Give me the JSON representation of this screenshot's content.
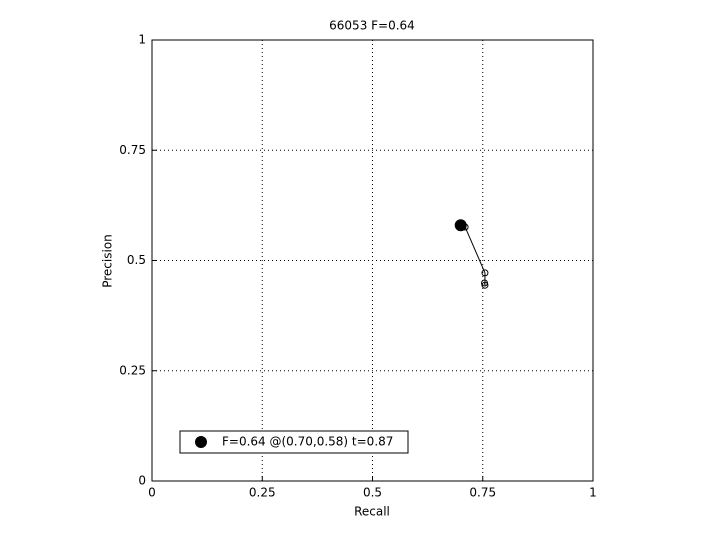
{
  "chart_data": {
    "type": "line",
    "title": "66053 F=0.64",
    "x_label": "Recall",
    "y_label": "Precision",
    "series": [
      {
        "color": "#000000",
        "x": [
          0.71,
          0.755,
          0.755,
          0.754
        ],
        "values": [
          0.576,
          0.472,
          0.444,
          0.449
        ]
      }
    ],
    "best_point": {
      "x": 0.7,
      "y": 0.58,
      "color": "#000000",
      "legend": "F=0.64 @(0.70,0.58) t=0.87"
    },
    "xlim": [
      0,
      1
    ],
    "ylim": [
      0,
      1
    ],
    "xticks": [
      0,
      0.25,
      0.5,
      0.75,
      1
    ],
    "yticks": [
      0,
      0.25,
      0.5,
      0.75,
      1
    ],
    "grid": true
  }
}
